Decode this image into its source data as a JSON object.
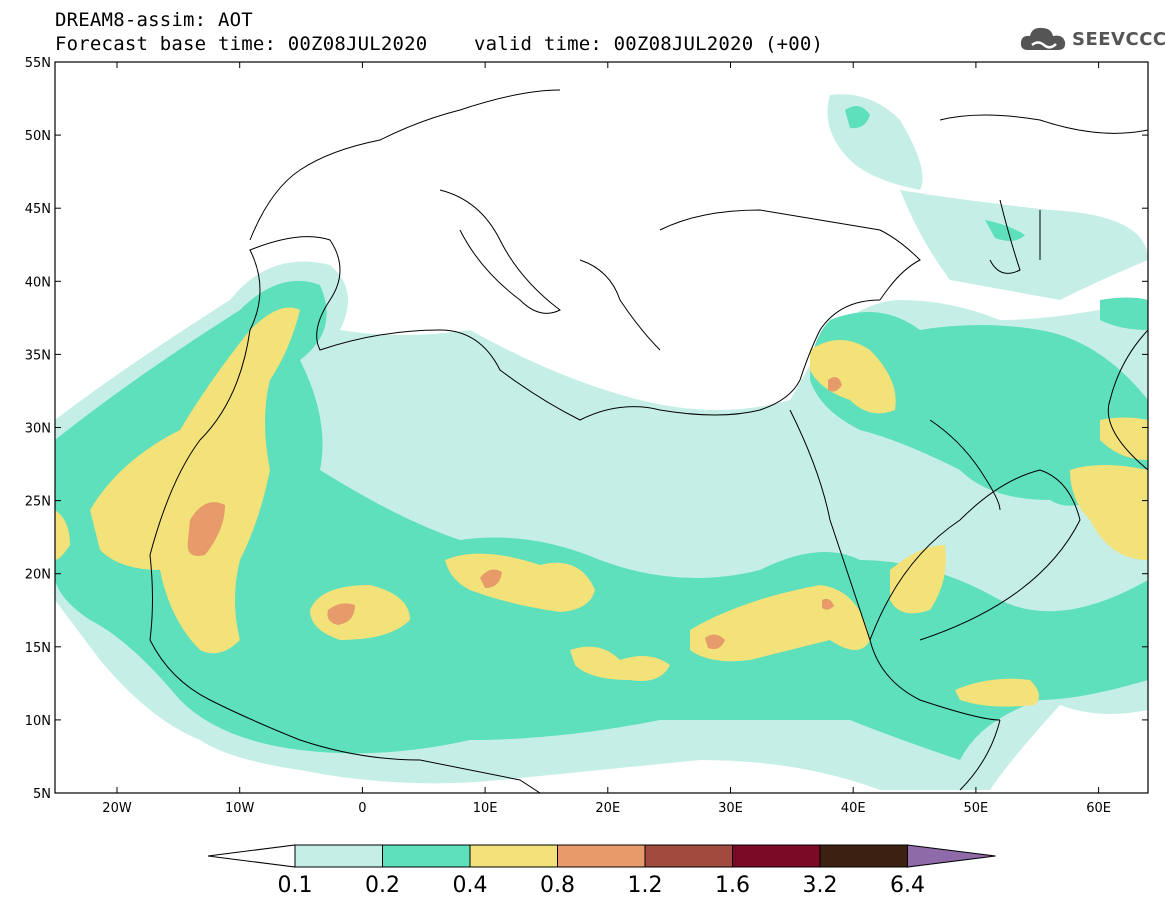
{
  "header": {
    "title_line1": "DREAM8-assim: AOT",
    "title_line2": "Forecast base time: 00Z08JUL2020    valid time: 00Z08JUL2020 (+00)"
  },
  "logo": {
    "text": "SEEVCCC",
    "icon": "cloud-icon"
  },
  "map": {
    "lat_labels": [
      "55N",
      "50N",
      "45N",
      "40N",
      "35N",
      "30N",
      "25N",
      "20N",
      "15N",
      "10N",
      "5N"
    ],
    "lon_labels": [
      "20W",
      "10W",
      "0",
      "10E",
      "20E",
      "30E",
      "40E",
      "50E",
      "60E"
    ]
  },
  "colorbar": {
    "colors": [
      "#ffffff",
      "#c5efe6",
      "#5de0bb",
      "#f3e17a",
      "#e79a6a",
      "#a24a3d",
      "#7a0a25",
      "#3c2012",
      "#8e6aa8"
    ],
    "labels": [
      "0.1",
      "0.2",
      "0.4",
      "0.8",
      "1.2",
      "1.6",
      "3.2",
      "6.4"
    ]
  }
}
